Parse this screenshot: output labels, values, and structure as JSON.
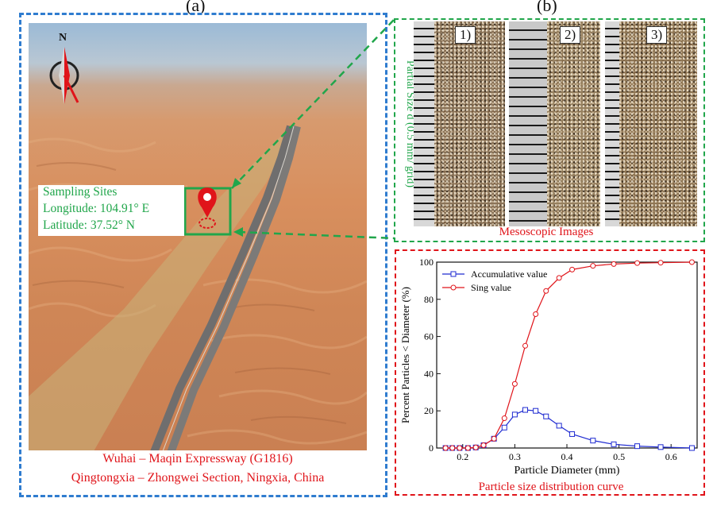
{
  "panel_a": {
    "label": "(a)",
    "north": "N",
    "sampling": {
      "title": "Sampling Sites",
      "longitude": "Longitude: 104.91° E",
      "latitude": "Latitude: 37.52° N"
    },
    "caption_line1": "Wuhai – Maqin Expressway (G1816)",
    "caption_line2": "Qingtongxia – Zhongwei Section, Ningxia, China"
  },
  "panel_b": {
    "label": "(b)",
    "samples": [
      "1)",
      "2)",
      "3)"
    ],
    "side_label": "Partial Size d (0.5 mm/ grid)",
    "caption": "Mesoscopic Images"
  },
  "colors": {
    "blue_frame": "#2f7ccf",
    "green": "#21a64b",
    "red": "#e0141a",
    "accum_series": "#1f2bd1",
    "sing_series": "#e0141a"
  },
  "chart_data": {
    "type": "line",
    "title": "Particle size distribution curve",
    "xlabel": "Particle Diameter (mm)",
    "ylabel": "Percent Particles < Diameter (%)",
    "xlim": [
      0.15,
      0.65
    ],
    "ylim": [
      0,
      100
    ],
    "xticks": [
      "0.2",
      "0.3",
      "0.4",
      "0.5",
      "0.6"
    ],
    "xtick_values": [
      0.2,
      0.3,
      0.4,
      0.5,
      0.6
    ],
    "yticks": [
      "0",
      "20",
      "40",
      "60",
      "80",
      "100"
    ],
    "ytick_values": [
      0,
      20,
      40,
      60,
      80,
      100
    ],
    "legend": "top-left",
    "series": [
      {
        "name": "Accumulative value",
        "marker": "square",
        "x": [
          0.167,
          0.18,
          0.194,
          0.21,
          0.225,
          0.24,
          0.26,
          0.28,
          0.3,
          0.32,
          0.34,
          0.36,
          0.385,
          0.41,
          0.45,
          0.49,
          0.535,
          0.58,
          0.64
        ],
        "values": [
          0,
          0,
          0,
          0,
          0.3,
          1.5,
          5,
          11,
          18,
          20.5,
          20,
          17,
          12,
          7.5,
          4,
          2,
          1,
          0.5,
          0
        ]
      },
      {
        "name": "Sing value",
        "marker": "circle",
        "x": [
          0.167,
          0.18,
          0.194,
          0.21,
          0.225,
          0.24,
          0.26,
          0.28,
          0.3,
          0.32,
          0.34,
          0.36,
          0.385,
          0.41,
          0.45,
          0.49,
          0.535,
          0.58,
          0.64
        ],
        "values": [
          0,
          0,
          0,
          0,
          0.3,
          1.5,
          5,
          16,
          34.5,
          55,
          72,
          84.5,
          91.5,
          96,
          98,
          99,
          99.5,
          99.7,
          100
        ]
      }
    ]
  }
}
